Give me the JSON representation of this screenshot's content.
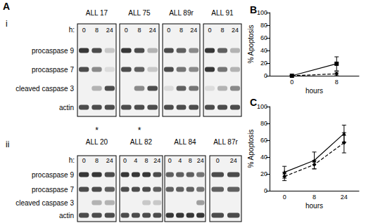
{
  "blots": {
    "panel": "A",
    "groups": [
      {
        "label": "i",
        "time_label": "h:",
        "row_labels": [
          "procaspase 9",
          "procaspase 7",
          "cleaved caspase 3",
          "actin"
        ],
        "blots": [
          {
            "name": "ALL 17",
            "times": [
              "0",
              "8",
              "24"
            ],
            "asterisk": "*",
            "bands": [
              [
                0.9,
                0.8,
                0.2
              ],
              [
                0.8,
                0.5,
                0.1
              ],
              [
                0,
                0.3,
                0.8
              ],
              [
                0.8,
                0.8,
                0.8
              ]
            ]
          },
          {
            "name": "ALL 75",
            "times": [
              "0",
              "8",
              "24"
            ],
            "asterisk": "*",
            "bands": [
              [
                0.9,
                0.8,
                0.3
              ],
              [
                0.8,
                0.7,
                0.2
              ],
              [
                0,
                0.5,
                0.8
              ],
              [
                0.8,
                0.8,
                0.8
              ]
            ]
          },
          {
            "name": "ALL 89r",
            "times": [
              "0",
              "8",
              "24"
            ],
            "bands": [
              [
                0.8,
                0.7,
                0.5
              ],
              [
                0.8,
                0.6,
                0.5
              ],
              [
                0.1,
                0.7,
                0.6
              ],
              [
                0.8,
                0.8,
                0.8
              ]
            ]
          },
          {
            "name": "ALL 91",
            "times": [
              "0",
              "8",
              "24"
            ],
            "bands": [
              [
                0.9,
                0.7,
                0.3
              ],
              [
                0.9,
                0.6,
                0.3
              ],
              [
                0.1,
                0.3,
                0.5
              ],
              [
                0.8,
                0.8,
                0.8
              ]
            ]
          }
        ]
      },
      {
        "label": "ii",
        "time_label": "h:",
        "row_labels": [
          "procaspase 9",
          "procaspase 7",
          "cleaved caspase 3",
          "actin"
        ],
        "blots": [
          {
            "name": "ALL 20",
            "times": [
              "0",
              "8",
              "24"
            ],
            "bands": [
              [
                0.9,
                0.9,
                0.8
              ],
              [
                0.8,
                0.8,
                0.7
              ],
              [
                0,
                0.3,
                0.3
              ],
              [
                0.8,
                0.8,
                0.8
              ]
            ]
          },
          {
            "name": "ALL 82",
            "times": [
              "0",
              "4",
              "8",
              "24"
            ],
            "bands": [
              [
                0.9,
                0.9,
                0.9,
                0.8
              ],
              [
                0.8,
                0.8,
                0.8,
                0.7
              ],
              [
                0,
                0,
                0.2,
                0.2
              ],
              [
                0.8,
                0.8,
                0.8,
                0.8
              ]
            ]
          },
          {
            "name": "ALL 84",
            "times": [
              "0",
              "4",
              "8",
              "24"
            ],
            "bands": [
              [
                0.7,
                0.7,
                0.7,
                0.6
              ],
              [
                0.7,
                0.7,
                0.7,
                0.6
              ],
              [
                0,
                0,
                0,
                0.4
              ],
              [
                0.9,
                0.9,
                0.9,
                0.9
              ]
            ]
          },
          {
            "name": "ALL 87r",
            "times": [
              "0",
              "24"
            ],
            "bands": [
              [
                0.8,
                0.8
              ],
              [
                0.7,
                0.7
              ],
              [
                0,
                0
              ],
              [
                0.8,
                0.8
              ]
            ]
          }
        ]
      }
    ]
  },
  "chart_data": [
    {
      "type": "line",
      "panel": "B",
      "categories": [
        "0",
        "8"
      ],
      "x_label": "hours",
      "y_label": "% Apoptosis",
      "ylim": [
        0,
        100
      ],
      "yticks": [
        0,
        20,
        40,
        60,
        80,
        100
      ],
      "grid": false,
      "series": [
        {
          "color": "#000000",
          "line_style": "solid",
          "marker": "square",
          "values": [
            0,
            19
          ],
          "errors": [
            0,
            11
          ]
        },
        {
          "color": "#000000",
          "line_style": "dashed",
          "marker": "diamond",
          "values": [
            0,
            3
          ],
          "errors": [
            0,
            3
          ]
        }
      ]
    },
    {
      "type": "line",
      "panel": "C",
      "categories": [
        "0",
        "8",
        "24"
      ],
      "x_label": "hours",
      "y_label": "% Apoptosis",
      "ylim": [
        0,
        100
      ],
      "yticks": [
        0,
        20,
        40,
        60,
        80,
        100
      ],
      "grid": false,
      "series": [
        {
          "color": "#000000",
          "line_style": "solid",
          "marker": "triangle",
          "values": [
            22,
            36,
            68
          ],
          "errors": [
            7,
            10,
            10
          ]
        },
        {
          "color": "#000000",
          "line_style": "dashed",
          "marker": "diamond",
          "values": [
            17,
            31,
            57
          ],
          "errors": [
            5,
            5,
            12
          ]
        }
      ]
    }
  ]
}
